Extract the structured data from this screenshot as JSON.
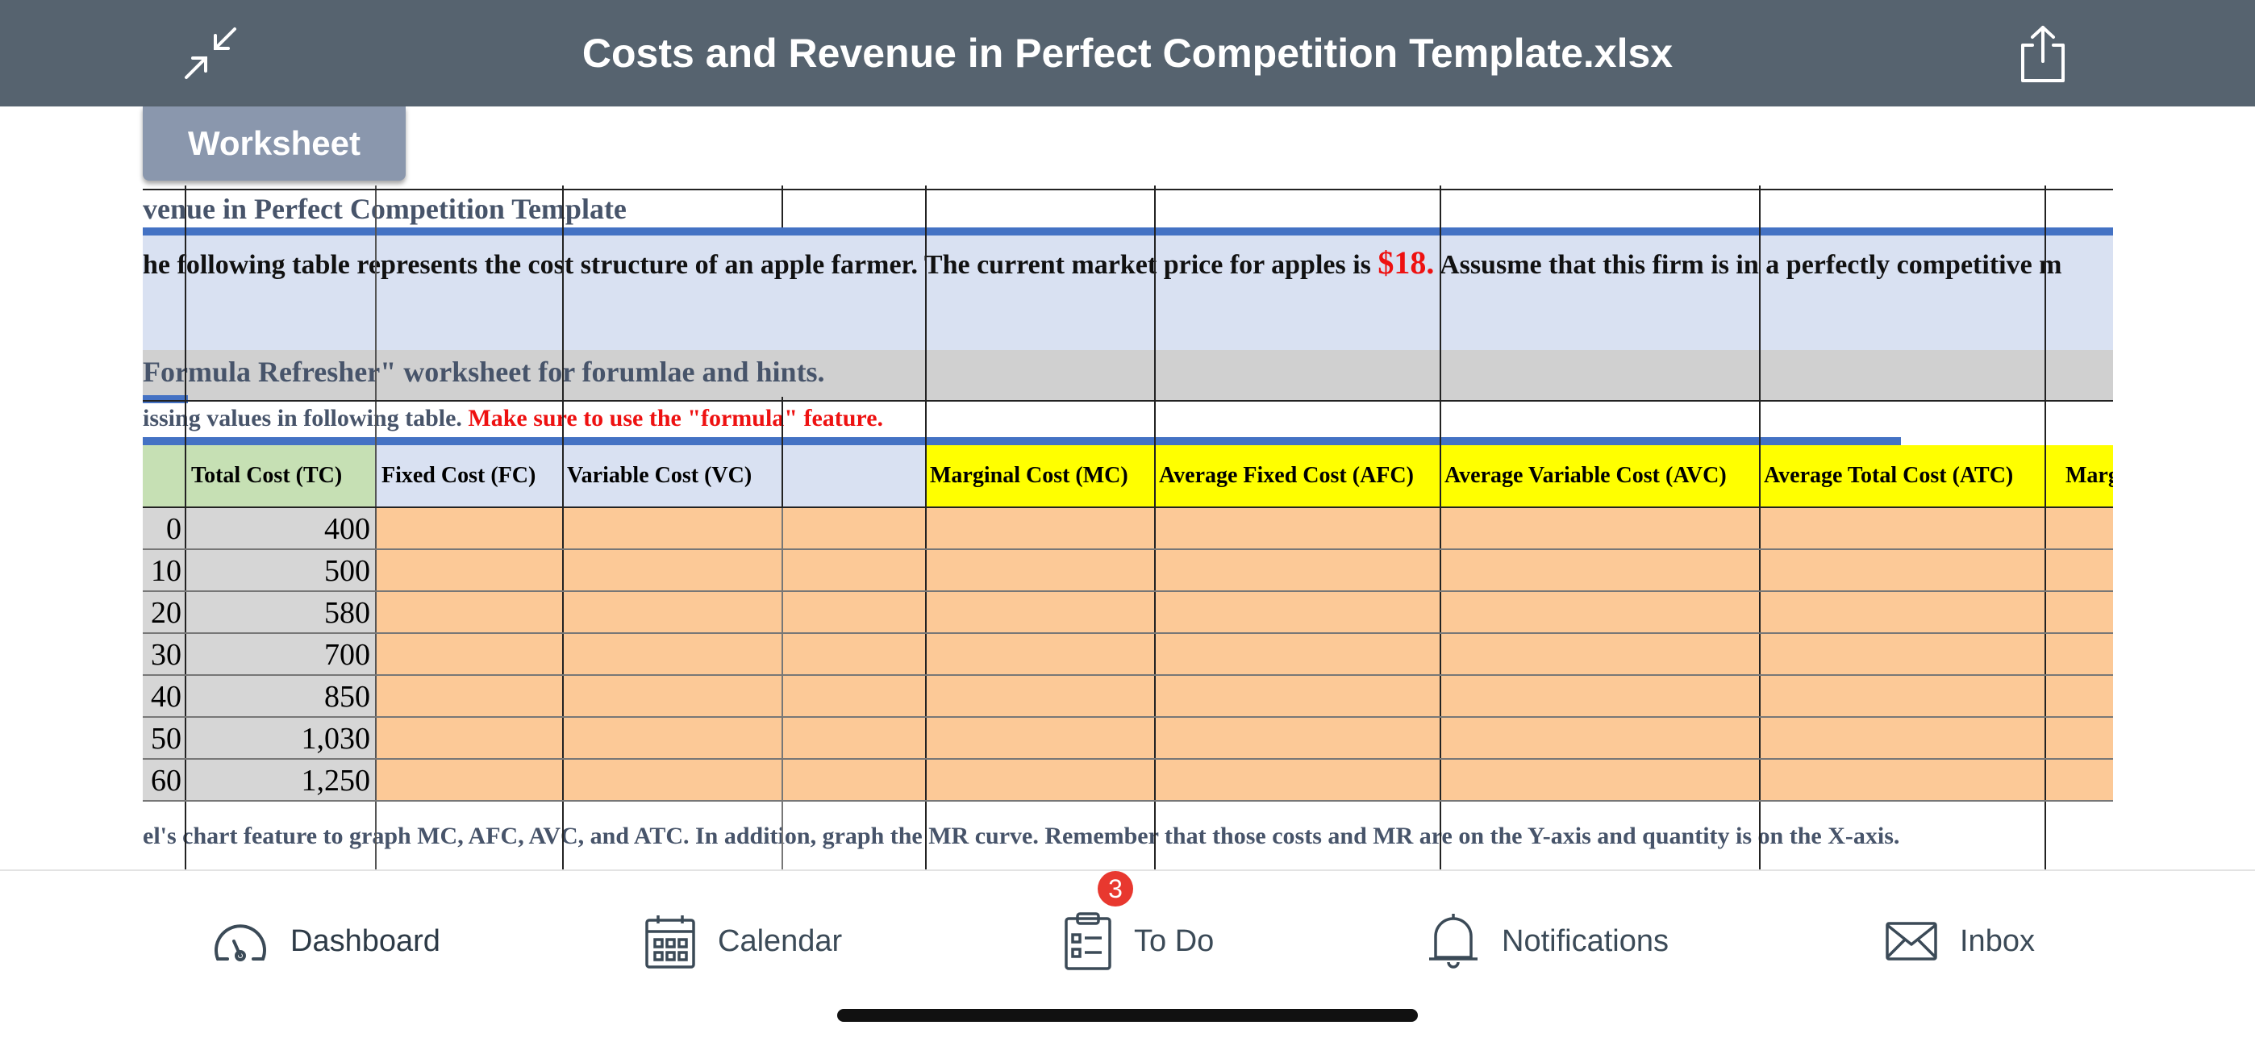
{
  "header": {
    "title": "Costs and Revenue in Perfect Competition Template.xlsx",
    "left_icon": "collapse-arrows-icon",
    "right_icon": "share-icon"
  },
  "sheet_tab": {
    "label": "Worksheet"
  },
  "sheet": {
    "title_row": "venue in Perfect Competition Template",
    "description_part1": "he following table represents the cost structure of an apple farmer. The current market price for apples is ",
    "price": "$18.",
    "description_part2": " Assusme that this firm is in a perfectly competitive m",
    "refresher_row": "Formula Refresher\" worksheet for forumlae and hints.",
    "instruction_part1": "issing values in following table. ",
    "instruction_part2": "Make sure to use the \"formula\" feature.",
    "columns": [
      "Total Cost (TC)",
      "Fixed Cost (FC)",
      "Variable Cost (VC)",
      "Marginal Cost (MC)",
      "Average Fixed Cost (AFC)",
      "Average Variable Cost (AVC)",
      "Average Total Cost (ATC)",
      "Marginal Revenue ("
    ],
    "rows": [
      {
        "q": "0",
        "tc": "400"
      },
      {
        "q": "10",
        "tc": "500"
      },
      {
        "q": "20",
        "tc": "580"
      },
      {
        "q": "30",
        "tc": "700"
      },
      {
        "q": "40",
        "tc": "850"
      },
      {
        "q": "50",
        "tc": "1,030"
      },
      {
        "q": "60",
        "tc": "1,250"
      }
    ],
    "footer_note": "el's chart feature to graph MC, AFC, AVC, and ATC. In addition, graph the MR curve. Remember that those costs and MR are on the Y-axis and quantity is on the X-axis."
  },
  "colors": {
    "header_bg": "#56636f",
    "tab_bg": "#8a97ad",
    "accent_blue": "#4472c4",
    "desc_bg": "#d9e1f2",
    "refresher_bg": "#d0d0d0",
    "highlight_red": "#ee1111",
    "header_yellow": "#ffff00",
    "header_green": "#c6e0b4",
    "input_orange": "#fcc997"
  },
  "bottom_nav": {
    "items": [
      {
        "label": "Dashboard",
        "icon": "dashboard-gauge-icon"
      },
      {
        "label": "Calendar",
        "icon": "calendar-icon"
      },
      {
        "label": "To Do",
        "icon": "clipboard-todo-icon",
        "badge": "3"
      },
      {
        "label": "Notifications",
        "icon": "bell-icon"
      },
      {
        "label": "Inbox",
        "icon": "envelope-icon"
      }
    ]
  }
}
